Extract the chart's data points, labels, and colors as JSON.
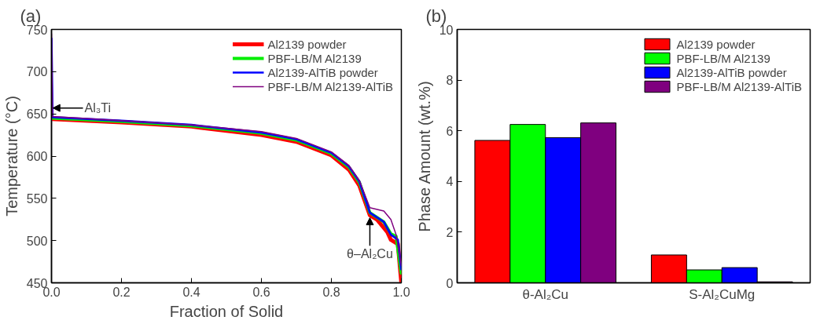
{
  "chart_data": [
    {
      "type": "line",
      "title": "(a)",
      "xlabel": "Fraction of Solid",
      "ylabel": "Temperature (°C)",
      "xlim": [
        0,
        1
      ],
      "ylim": [
        450,
        750
      ],
      "xticks": [
        {
          "value": 0,
          "label": "0.0"
        },
        {
          "value": 0.2,
          "label": "0.2"
        },
        {
          "value": 0.4,
          "label": "0.4"
        },
        {
          "value": 0.6,
          "label": "0.6"
        },
        {
          "value": 0.8,
          "label": "0.8"
        },
        {
          "value": 1,
          "label": "1.0"
        }
      ],
      "yticks": [
        450,
        500,
        550,
        600,
        650,
        700,
        750
      ],
      "grid": false,
      "legend": "top right",
      "line_style": "solid",
      "series": [
        {
          "name": "Al2139 powder",
          "color": "#ff0000",
          "x": [
            0,
            0.2,
            0.4,
            0.6,
            0.7,
            0.8,
            0.85,
            0.88,
            0.91,
            0.93,
            0.96,
            0.97,
            0.99,
            1.0
          ],
          "values": [
            644,
            640,
            635,
            625,
            617,
            601,
            584,
            565,
            530,
            525,
            510,
            501,
            496,
            450
          ]
        },
        {
          "name": "PBF-LB/M Al2139",
          "color": "#00ee00",
          "x": [
            0,
            0.2,
            0.4,
            0.6,
            0.7,
            0.8,
            0.85,
            0.88,
            0.91,
            0.95,
            0.97,
            0.985,
            1.0
          ],
          "values": [
            645,
            641,
            636,
            627,
            619,
            603,
            587,
            569,
            533,
            522,
            508,
            505,
            460
          ]
        },
        {
          "name": "Al2139-AlTiB powder",
          "color": "#0000ff",
          "x": [
            0,
            0.003,
            0.2,
            0.4,
            0.6,
            0.7,
            0.8,
            0.85,
            0.88,
            0.91,
            0.95,
            0.97,
            0.99,
            1.0
          ],
          "values": [
            740,
            646,
            642,
            637,
            628,
            620,
            604,
            588,
            570,
            533,
            522,
            507,
            501,
            465
          ]
        },
        {
          "name": "PBF-LB/M Al2139-AlTiB",
          "color": "#7f007f",
          "x": [
            0,
            0.003,
            0.2,
            0.4,
            0.6,
            0.7,
            0.8,
            0.85,
            0.88,
            0.91,
            0.95,
            0.97,
            0.985,
            1.0
          ],
          "values": [
            745,
            647,
            642,
            637,
            629,
            621,
            605,
            589,
            571,
            539,
            535,
            525,
            507,
            470
          ]
        }
      ],
      "annotations": [
        {
          "text": "Al₃Ti",
          "x": 0,
          "y": 657
        },
        {
          "text": "θ–Al₂Cu",
          "x": 0.91,
          "y": 530
        }
      ]
    },
    {
      "type": "bar",
      "title": "(b)",
      "ylabel": "Phase Amount (wt.%)",
      "categories": [
        "θ-Al₂Cu",
        "S-Al₂CuMg"
      ],
      "ylim": [
        0,
        10
      ],
      "yticks": [
        0,
        2,
        4,
        6,
        8,
        10
      ],
      "grid": false,
      "legend": "top right",
      "series": [
        {
          "name": "Al2139 powder",
          "color": "#ff0000",
          "values": [
            5.62,
            1.1
          ]
        },
        {
          "name": "PBF-LB/M Al2139",
          "color": "#00ff00",
          "values": [
            6.25,
            0.51
          ]
        },
        {
          "name": "Al2139-AlTiB powder",
          "color": "#0000ff",
          "values": [
            5.73,
            0.6
          ]
        },
        {
          "name": "PBF-LB/M Al2139-AlTiB",
          "color": "#7f007f",
          "values": [
            6.31,
            0.04
          ]
        }
      ]
    }
  ]
}
